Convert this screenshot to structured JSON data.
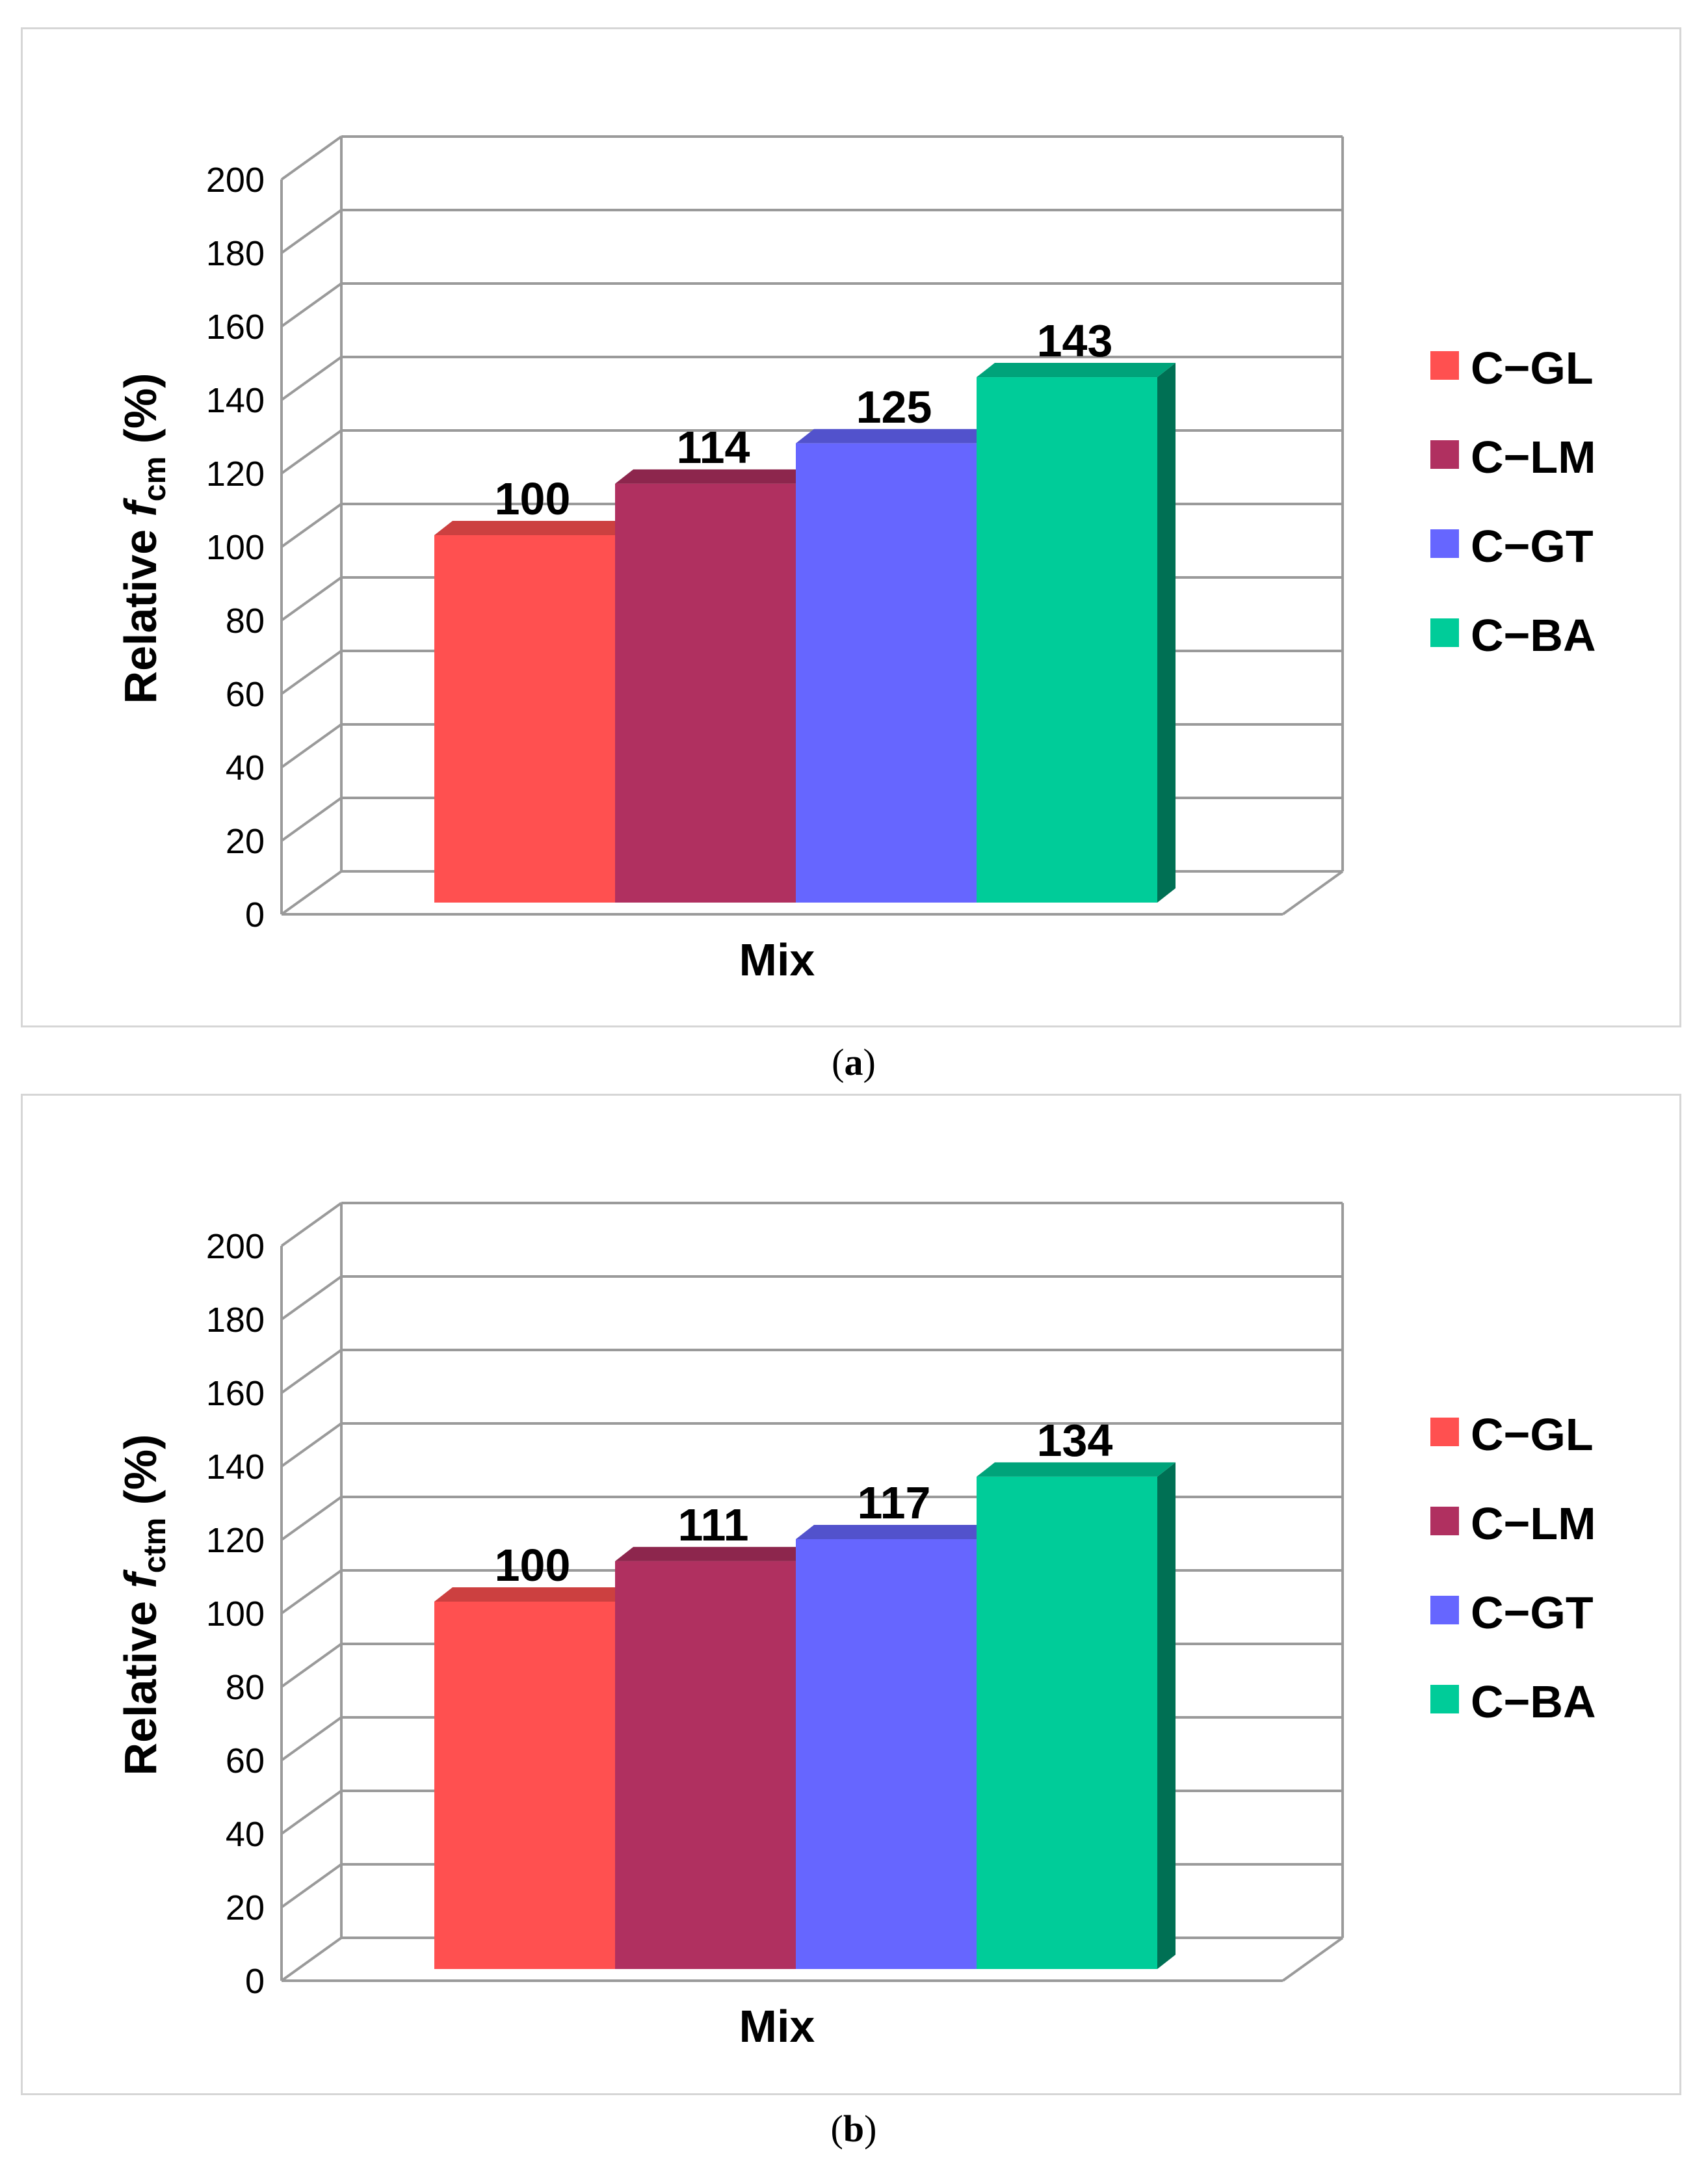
{
  "chart_data": [
    {
      "type": "bar",
      "panel": "(a)",
      "panel_letter": "a",
      "xlabel": "Mix",
      "ylabel_prefix": "Relative ",
      "ylabel_symbol": "f",
      "ylabel_sub": "cm",
      "ylabel_suffix": " (%)",
      "ylim": [
        0,
        200
      ],
      "yticks": [
        0,
        20,
        40,
        60,
        80,
        100,
        120,
        140,
        160,
        180,
        200
      ],
      "grid": true,
      "legend_position": "right",
      "series": [
        {
          "name": "C−GL",
          "value": 100,
          "color": "#ff5050"
        },
        {
          "name": "C−LM",
          "value": 114,
          "color": "#b03060"
        },
        {
          "name": "C−GT",
          "value": 125,
          "color": "#6666ff"
        },
        {
          "name": "C−BA",
          "value": 143,
          "color": "#00cc99"
        }
      ]
    },
    {
      "type": "bar",
      "panel": "(b)",
      "panel_letter": "b",
      "xlabel": "Mix",
      "ylabel_prefix": "Relative ",
      "ylabel_symbol": "f",
      "ylabel_sub": "ctm",
      "ylabel_suffix": " (%)",
      "ylim": [
        0,
        200
      ],
      "yticks": [
        0,
        20,
        40,
        60,
        80,
        100,
        120,
        140,
        160,
        180,
        200
      ],
      "grid": true,
      "legend_position": "right",
      "series": [
        {
          "name": "C−GL",
          "value": 100,
          "color": "#ff5050"
        },
        {
          "name": "C−LM",
          "value": 111,
          "color": "#b03060"
        },
        {
          "name": "C−GT",
          "value": 117,
          "color": "#6666ff"
        },
        {
          "name": "C−BA",
          "value": 134,
          "color": "#00cc99"
        }
      ]
    }
  ]
}
